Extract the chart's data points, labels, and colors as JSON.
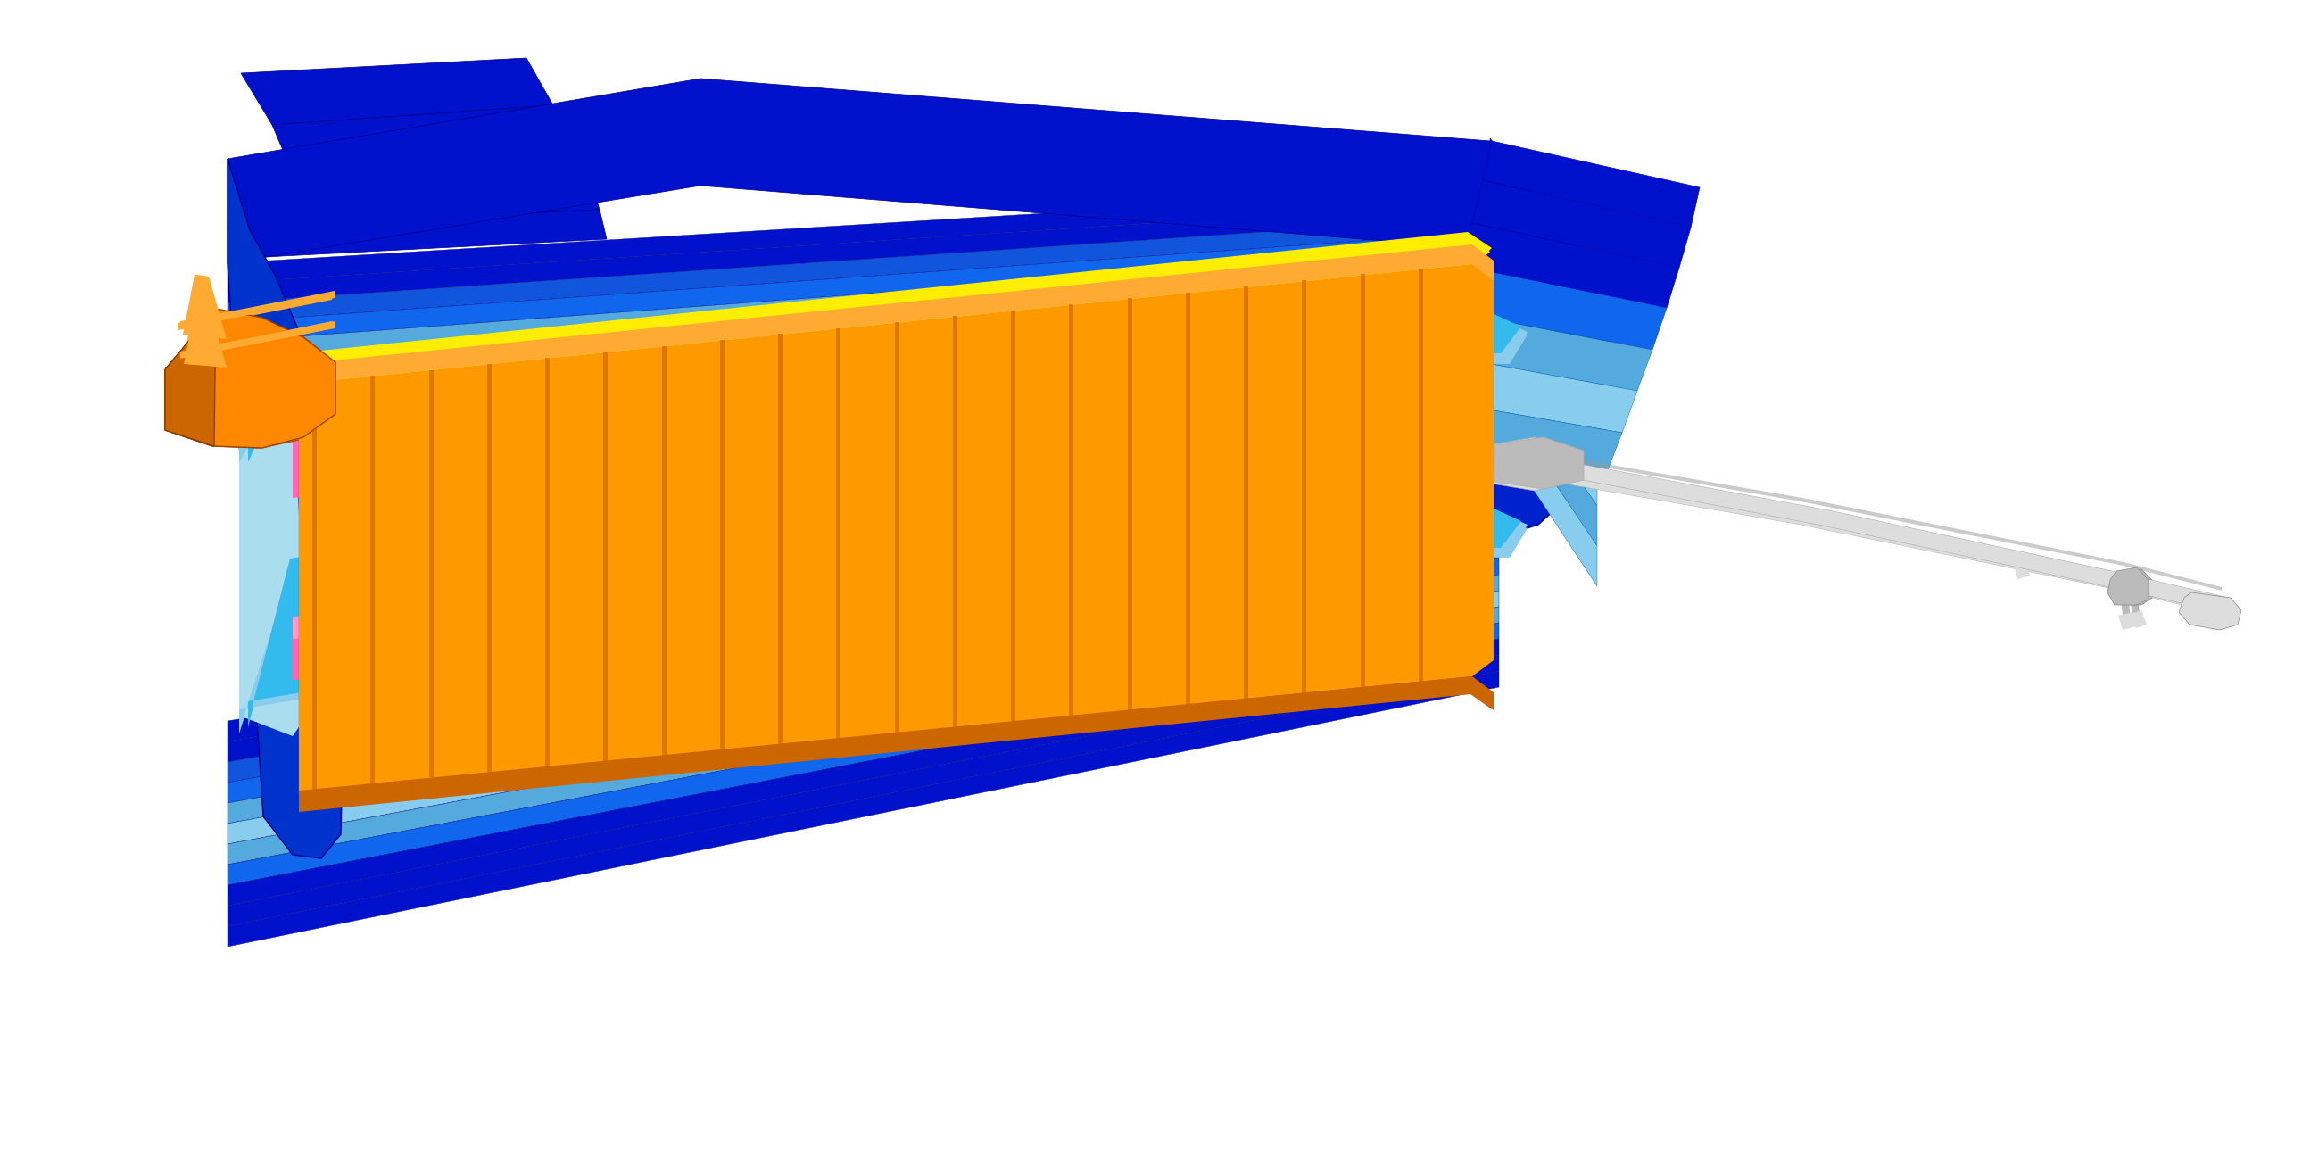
{
  "bg": "#ffffff",
  "dark_blue": "#0011cc",
  "med_blue": "#1166ee",
  "light_blue": "#55aadd",
  "cyan_blue": "#33bbee",
  "sky_blue": "#88ccee",
  "orange": "#ff8800",
  "orange_light": "#ffaa33",
  "orange_dark": "#cc6600",
  "orange_bright": "#ff9900",
  "yellow": "#ffee00",
  "yellow_mid": "#ffdd00",
  "pink": "#ff69b4",
  "pink_light": "#ff99cc",
  "pink_dark": "#dd4488",
  "magenta_dark": "#880044",
  "green": "#33dd00",
  "green_light": "#55ff11",
  "green_dark": "#1a8800",
  "white": "#ffffff",
  "light_gray": "#dddddd",
  "mid_gray": "#bbbbbb",
  "dark_gray": "#999999"
}
